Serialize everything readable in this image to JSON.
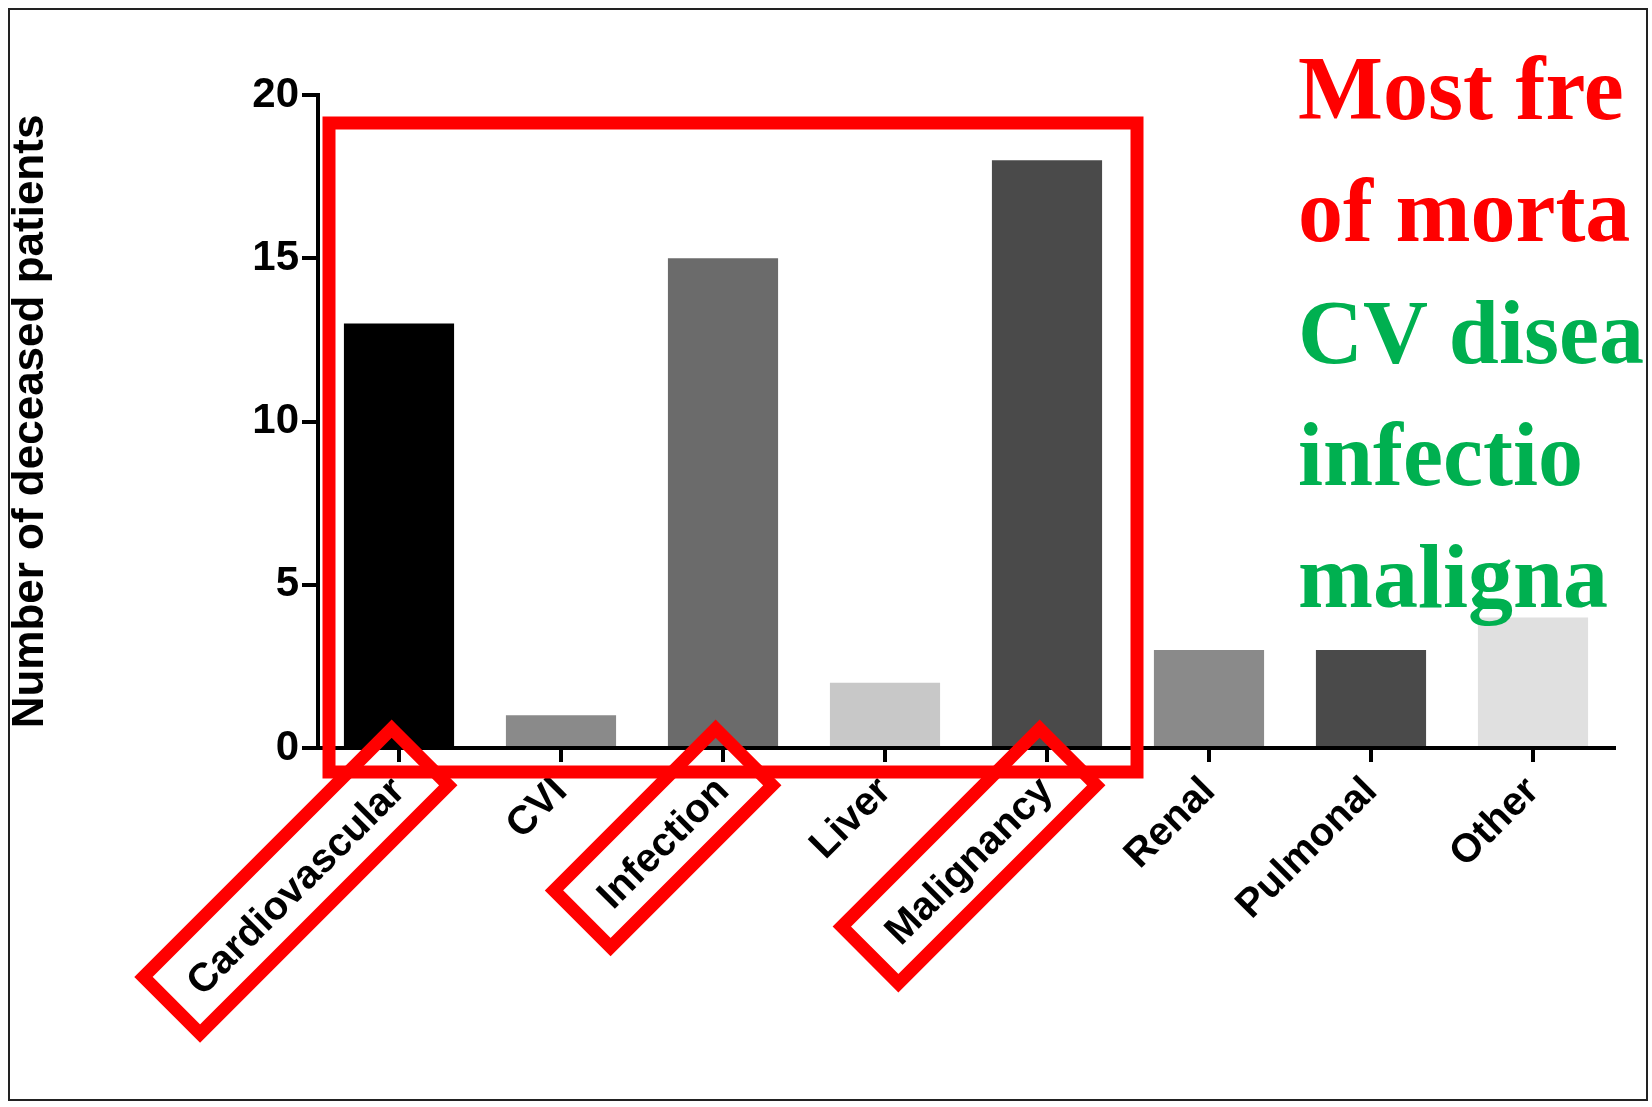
{
  "chart_data": {
    "type": "bar",
    "ylabel": "Number of deceased patients",
    "categories": [
      "Cardiovascular",
      "CVI",
      "Infection",
      "Liver",
      "Malignancy",
      "Renal",
      "Pulmonal",
      "Other"
    ],
    "values": [
      13,
      1,
      15,
      2,
      18,
      3,
      3,
      4
    ],
    "colors": [
      "#000000",
      "#8a8a8a",
      "#6b6b6b",
      "#c8c8c8",
      "#4a4a4a",
      "#8a8a8a",
      "#4a4a4a",
      "#e0e0e0"
    ],
    "ylim": [
      0,
      20
    ],
    "yticks": [
      0,
      5,
      10,
      15,
      20
    ],
    "grid": false,
    "legend": false,
    "annotations": [
      "Most fre",
      "of morta",
      "CV disea",
      "infectio",
      "maligna"
    ]
  }
}
